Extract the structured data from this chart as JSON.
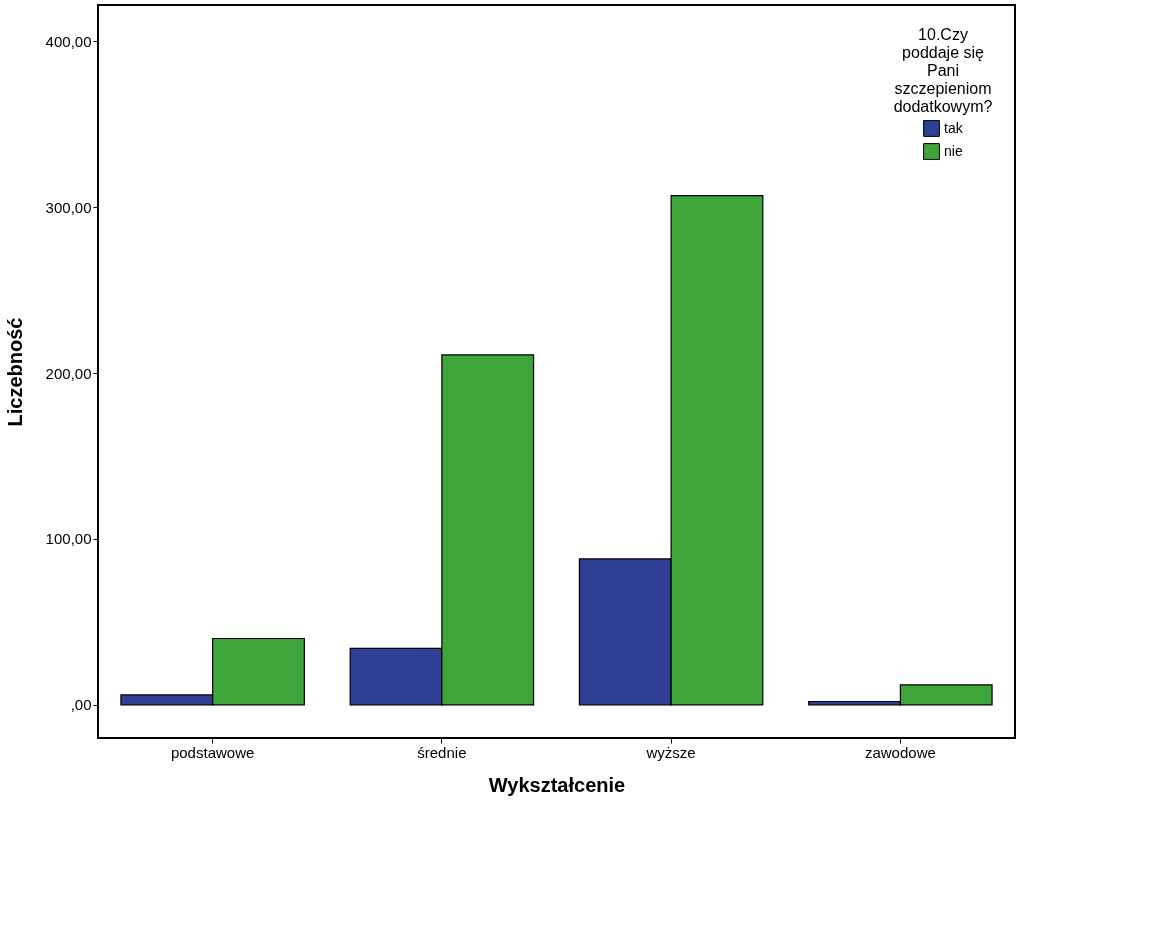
{
  "chart_data": {
    "type": "bar",
    "xlabel": "Wykształcenie",
    "ylabel": "Liczebność",
    "legend_title": "10.Czy poddaje się Pani szczepieniom dodatkowym?",
    "categories": [
      "podstawowe",
      "średnie",
      "wyższe",
      "zawodowe"
    ],
    "series": [
      {
        "name": "tak",
        "color": "#2f3f94",
        "values": [
          6,
          34,
          88,
          2
        ]
      },
      {
        "name": "nie",
        "color": "#3da53a",
        "values": [
          40,
          211,
          307,
          12
        ]
      }
    ],
    "ylim": [
      -20,
      422
    ],
    "yticks": [
      {
        "value": 0,
        "label": ",00"
      },
      {
        "value": 100,
        "label": "100,00"
      },
      {
        "value": 200,
        "label": "200,00"
      },
      {
        "value": 300,
        "label": "300,00"
      },
      {
        "value": 400,
        "label": "400,00"
      }
    ],
    "grid": false,
    "legend": "top right"
  }
}
